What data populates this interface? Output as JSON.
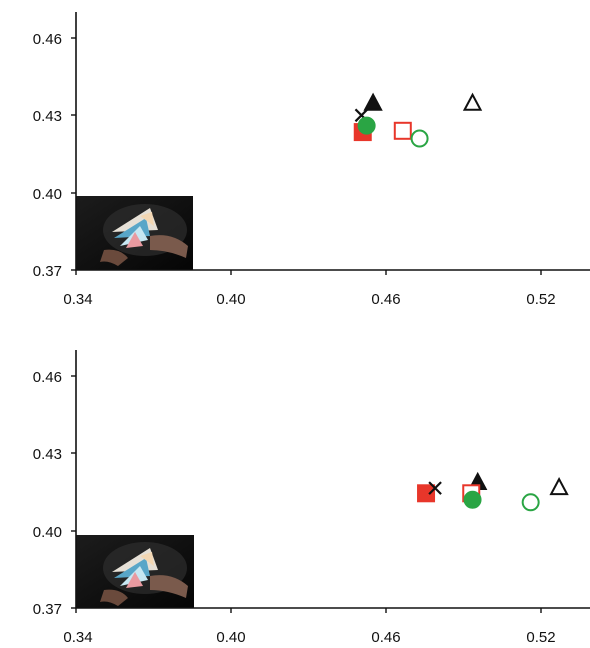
{
  "colors": {
    "red": "#e8362a",
    "green": "#2aa544",
    "black": "#111111"
  },
  "chart_data": [
    {
      "type": "scatter",
      "title": "",
      "xlabel": "",
      "ylabel": "",
      "xlim": [
        0.34,
        0.54
      ],
      "ylim": [
        0.37,
        0.47
      ],
      "x_ticks": [
        "0.34",
        "0.40",
        "0.46",
        "0.52"
      ],
      "y_ticks": [
        "0.46",
        "0.43",
        "0.40",
        "0.37"
      ],
      "grid": false,
      "inset_image": "photo of hand holding color swatch fan in dark room",
      "series": [
        {
          "marker": "x",
          "color": "#111111",
          "filled": false,
          "x": 0.4505,
          "y": 0.43
        },
        {
          "marker": "triangle",
          "color": "#111111",
          "filled": true,
          "x": 0.455,
          "y": 0.4345
        },
        {
          "marker": "square",
          "color": "#e8362a",
          "filled": true,
          "x": 0.451,
          "y": 0.4235
        },
        {
          "marker": "circle",
          "color": "#2aa544",
          "filled": true,
          "x": 0.4525,
          "y": 0.426
        },
        {
          "marker": "square",
          "color": "#e8362a",
          "filled": false,
          "x": 0.4665,
          "y": 0.424
        },
        {
          "marker": "circle",
          "color": "#2aa544",
          "filled": false,
          "x": 0.473,
          "y": 0.421
        },
        {
          "marker": "triangle",
          "color": "#111111",
          "filled": false,
          "x": 0.4935,
          "y": 0.4345
        }
      ]
    },
    {
      "type": "scatter",
      "title": "",
      "xlabel": "",
      "ylabel": "",
      "xlim": [
        0.34,
        0.54
      ],
      "ylim": [
        0.37,
        0.47
      ],
      "x_ticks": [
        "0.34",
        "0.40",
        "0.46",
        "0.52"
      ],
      "y_ticks": [
        "0.46",
        "0.43",
        "0.40",
        "0.37"
      ],
      "grid": false,
      "inset_image": "photo of hand holding color swatch fan in dark room",
      "series": [
        {
          "marker": "square",
          "color": "#e8362a",
          "filled": true,
          "x": 0.4755,
          "y": 0.4145
        },
        {
          "marker": "x",
          "color": "#111111",
          "filled": false,
          "x": 0.479,
          "y": 0.4165
        },
        {
          "marker": "triangle",
          "color": "#111111",
          "filled": true,
          "x": 0.4955,
          "y": 0.4185
        },
        {
          "marker": "square",
          "color": "#e8362a",
          "filled": false,
          "x": 0.493,
          "y": 0.4145
        },
        {
          "marker": "circle",
          "color": "#2aa544",
          "filled": true,
          "x": 0.4935,
          "y": 0.412
        },
        {
          "marker": "circle",
          "color": "#2aa544",
          "filled": false,
          "x": 0.516,
          "y": 0.411
        },
        {
          "marker": "triangle",
          "color": "#111111",
          "filled": false,
          "x": 0.527,
          "y": 0.4165
        }
      ]
    }
  ]
}
